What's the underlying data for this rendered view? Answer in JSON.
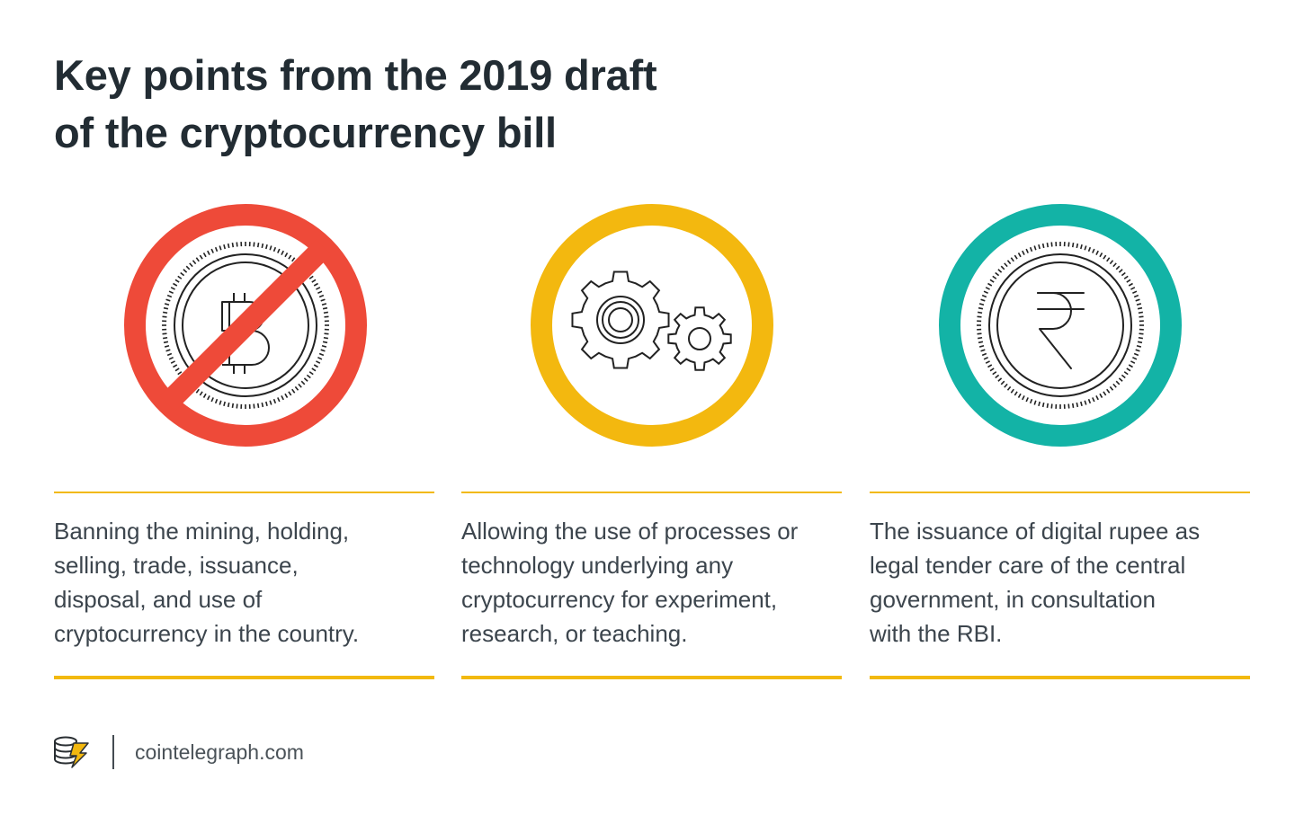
{
  "title": {
    "line1": "Key points from the 2019 draft",
    "line2": "of the cryptocurrency bill"
  },
  "icons": [
    {
      "name": "bitcoin-ban-icon",
      "ring_color": "#ee4a39"
    },
    {
      "name": "gears-icon",
      "ring_color": "#f3b80f"
    },
    {
      "name": "rupee-coin-icon",
      "ring_color": "#13b3a6"
    }
  ],
  "points": [
    {
      "lines": [
        "Banning the mining, holding,",
        "selling, trade, issuance,",
        "disposal, and use of",
        "cryptocurrency in the country."
      ]
    },
    {
      "lines": [
        "Allowing the use of processes or",
        "technology underlying any",
        "cryptocurrency for experiment,",
        "research, or teaching."
      ]
    },
    {
      "lines": [
        "The issuance of digital rupee as",
        "legal tender care of the central",
        "government, in consultation",
        "with the RBI."
      ]
    }
  ],
  "footer": {
    "logo_icon": "cointelegraph-logo-icon",
    "site": "cointelegraph.com"
  },
  "colors": {
    "accent_line": "#f2b90f",
    "title": "#222c33",
    "body_text": "#3c454d"
  }
}
